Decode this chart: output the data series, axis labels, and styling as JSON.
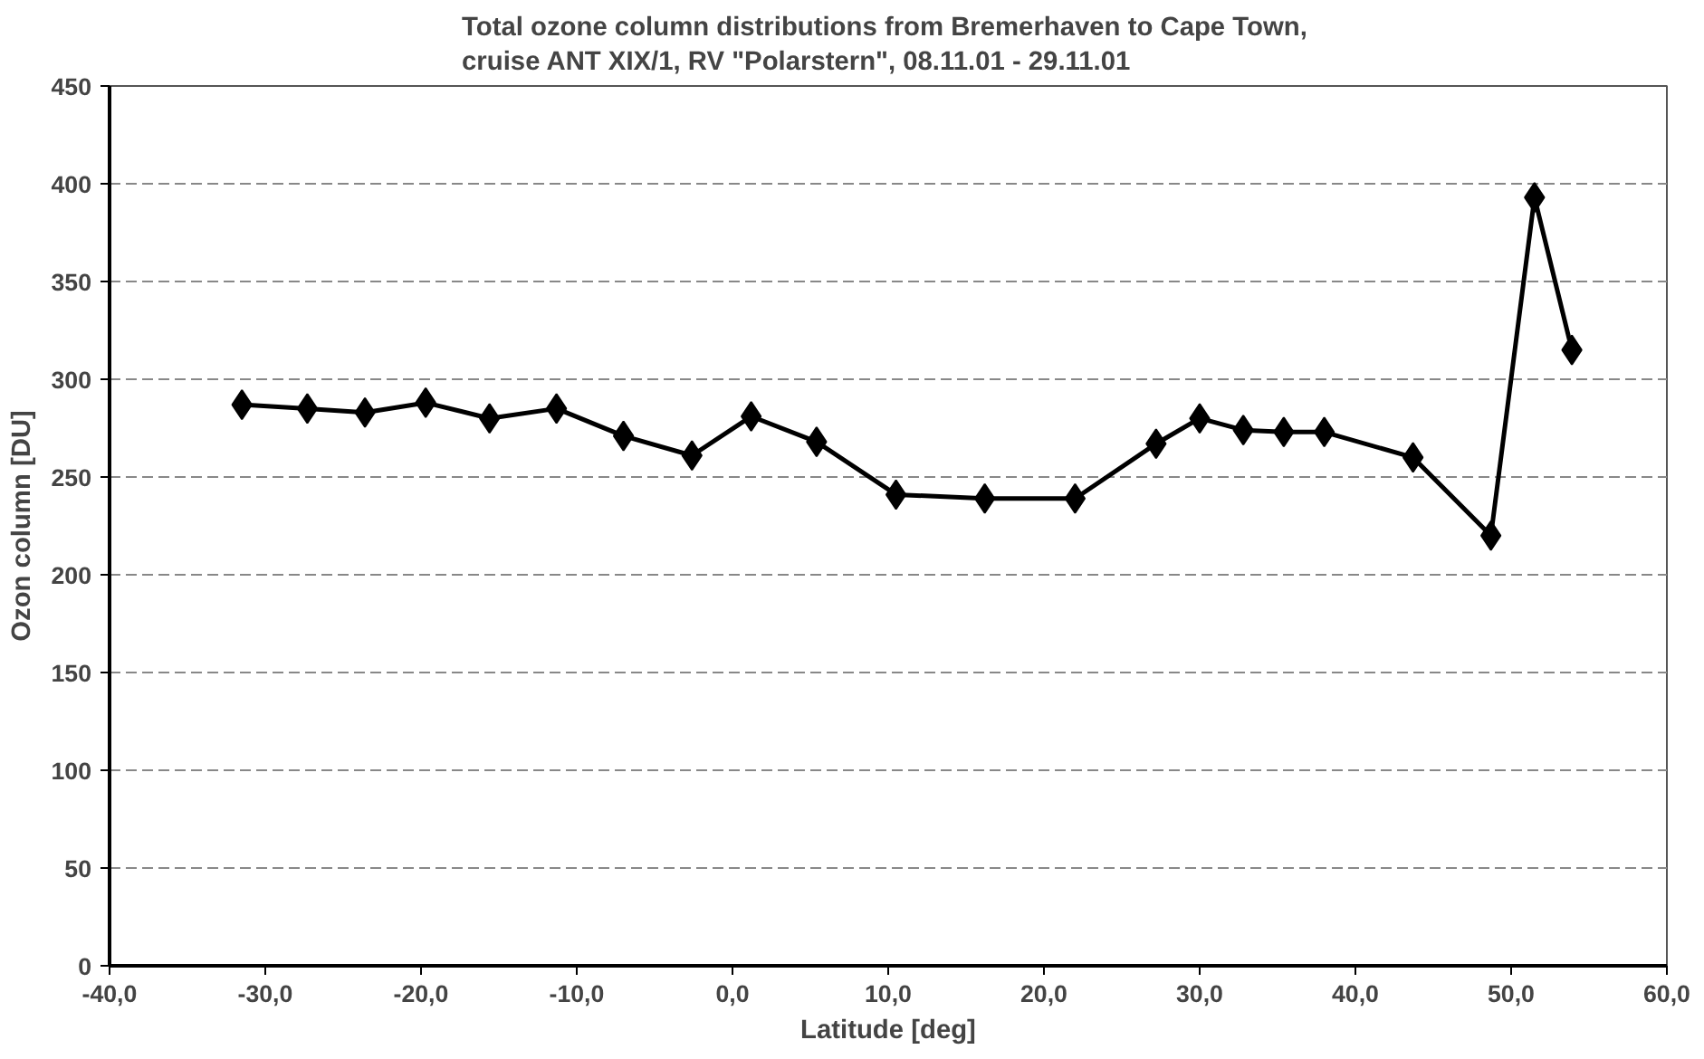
{
  "chart_data": {
    "type": "line",
    "title": "Total ozone  column distributions from Bremerhaven to Cape Town,\ncruise ANT XIX/1, RV \"Polarstern\", 08.11.01 - 29.11.01",
    "xlabel": "Latitude [deg]",
    "ylabel": "Ozon column [DU]",
    "x": [
      -31.5,
      -27.3,
      -23.6,
      -19.7,
      -15.6,
      -11.3,
      -7.0,
      -2.6,
      1.2,
      5.4,
      10.5,
      16.2,
      22.0,
      27.2,
      30.0,
      32.8,
      35.4,
      38.0,
      43.7,
      48.7,
      51.5,
      53.9
    ],
    "series": [
      {
        "color": "#000000",
        "values": [
          287,
          285,
          283,
          288,
          280,
          285,
          271,
          261,
          281,
          268,
          241,
          239,
          239,
          267,
          280,
          274,
          273,
          273,
          260,
          220,
          393,
          315
        ]
      }
    ],
    "xlim": [
      -40,
      60
    ],
    "ylim": [
      0,
      450
    ],
    "xticks": [
      {
        "value": -40,
        "label": "-40,0"
      },
      {
        "value": -30,
        "label": "-30,0"
      },
      {
        "value": -20,
        "label": "-20,0"
      },
      {
        "value": -10,
        "label": "-10,0"
      },
      {
        "value": 0,
        "label": "0,0"
      },
      {
        "value": 10,
        "label": "10,0"
      },
      {
        "value": 20,
        "label": "20,0"
      },
      {
        "value": 30,
        "label": "30,0"
      },
      {
        "value": 40,
        "label": "40,0"
      },
      {
        "value": 50,
        "label": "50,0"
      },
      {
        "value": 60,
        "label": "60,0"
      }
    ],
    "yticks": [
      0,
      50,
      100,
      150,
      200,
      250,
      300,
      350,
      400,
      450
    ],
    "grid": "y",
    "marker": "diamond",
    "line_style": "solid"
  }
}
